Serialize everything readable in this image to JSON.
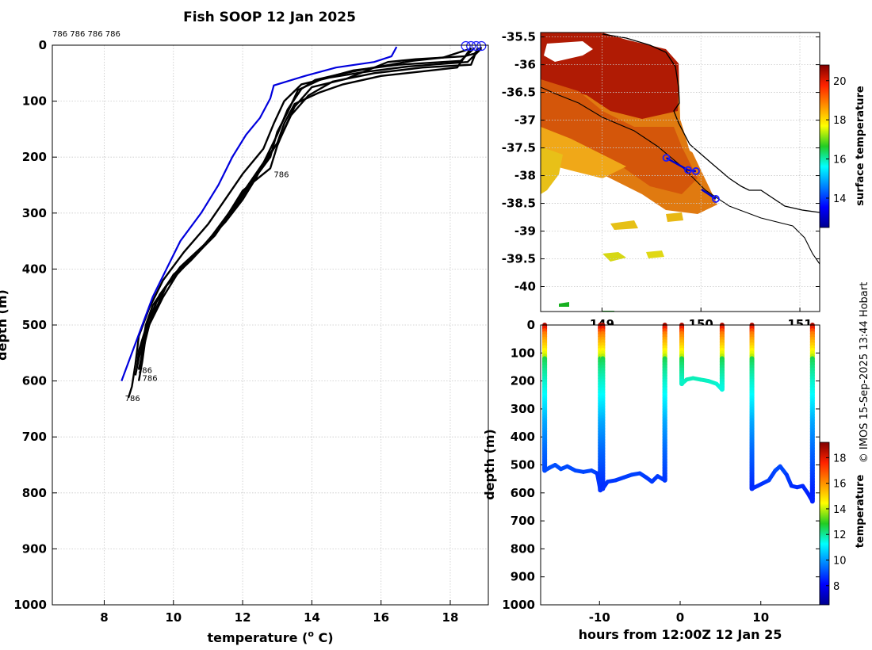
{
  "chart_data": [
    {
      "id": "profile",
      "type": "line",
      "title": "Fish SOOP 12 Jan 2025",
      "xlabel": "temperature (",
      "xlabel_degree": "o",
      "xlabel_unit": " C)",
      "ylabel": "depth (m)",
      "xlim": [
        6.5,
        19.1
      ],
      "ylim": [
        0,
        1000
      ],
      "y_reversed": true,
      "grid": true,
      "xticks": [
        8,
        10,
        12,
        14,
        16,
        18
      ],
      "yticks": [
        0,
        100,
        200,
        300,
        400,
        500,
        600,
        700,
        800,
        900,
        1000
      ],
      "top_label": "786 786 786 786",
      "climatology": {
        "name": "blue reference profile",
        "color": "#0000dd",
        "points": [
          [
            16.45,
            3
          ],
          [
            16.3,
            20
          ],
          [
            15.8,
            30
          ],
          [
            14.7,
            40
          ],
          [
            13.8,
            55
          ],
          [
            12.9,
            72
          ],
          [
            12.8,
            95
          ],
          [
            12.5,
            130
          ],
          [
            12.1,
            160
          ],
          [
            11.7,
            200
          ],
          [
            11.3,
            250
          ],
          [
            10.8,
            300
          ],
          [
            10.2,
            350
          ],
          [
            9.8,
            400
          ],
          [
            9.4,
            450
          ],
          [
            9.1,
            500
          ],
          [
            8.8,
            550
          ],
          [
            8.5,
            600
          ]
        ]
      },
      "profiles": [
        {
          "name": "drop 1",
          "points": [
            [
              18.9,
              3
            ],
            [
              18.7,
              15
            ],
            [
              18.4,
              20
            ],
            [
              17.0,
              25
            ],
            [
              16.2,
              30
            ],
            [
              15.0,
              60
            ],
            [
              14.0,
              75
            ],
            [
              13.5,
              110
            ],
            [
              13.2,
              150
            ],
            [
              13.0,
              180
            ],
            [
              12.8,
              220
            ],
            [
              12.0,
              260
            ],
            [
              11.6,
              300
            ],
            [
              11.0,
              350
            ],
            [
              10.2,
              400
            ],
            [
              9.7,
              450
            ],
            [
              9.3,
              500
            ],
            [
              9.1,
              550
            ],
            [
              9.0,
              580
            ]
          ]
        },
        {
          "name": "drop 2",
          "points": [
            [
              18.7,
              5
            ],
            [
              18.3,
              28
            ],
            [
              16.5,
              35
            ],
            [
              15.2,
              45
            ],
            [
              14.3,
              60
            ],
            [
              13.6,
              80
            ],
            [
              13.3,
              120
            ],
            [
              13.0,
              155
            ],
            [
              12.8,
              200
            ],
            [
              12.2,
              250
            ],
            [
              11.7,
              295
            ],
            [
              11.2,
              340
            ],
            [
              10.4,
              390
            ],
            [
              9.8,
              430
            ],
            [
              9.5,
              470
            ],
            [
              9.2,
              510
            ],
            [
              9.0,
              560
            ],
            [
              8.9,
              590
            ]
          ]
        },
        {
          "name": "drop 3",
          "points": [
            [
              18.8,
              4
            ],
            [
              18.6,
              35
            ],
            [
              17.2,
              40
            ],
            [
              15.8,
              50
            ],
            [
              14.6,
              65
            ],
            [
              13.9,
              90
            ],
            [
              13.4,
              125
            ],
            [
              13.1,
              165
            ],
            [
              12.7,
              205
            ],
            [
              12.3,
              240
            ],
            [
              11.9,
              280
            ],
            [
              11.4,
              320
            ],
            [
              10.7,
              370
            ],
            [
              10.0,
              410
            ],
            [
              9.5,
              460
            ],
            [
              9.2,
              520
            ],
            [
              9.1,
              565
            ],
            [
              9.0,
              600
            ]
          ]
        },
        {
          "name": "drop 4",
          "points": [
            [
              18.9,
              6
            ],
            [
              18.5,
              30
            ],
            [
              16.8,
              38
            ],
            [
              15.5,
              48
            ],
            [
              14.5,
              58
            ],
            [
              13.7,
              70
            ],
            [
              13.2,
              100
            ],
            [
              12.9,
              140
            ],
            [
              12.6,
              185
            ],
            [
              12.0,
              230
            ],
            [
              11.5,
              275
            ],
            [
              11.0,
              320
            ],
            [
              10.3,
              370
            ],
            [
              9.7,
              420
            ],
            [
              9.3,
              470
            ],
            [
              9.0,
              520
            ],
            [
              8.9,
              570
            ],
            [
              8.8,
              610
            ],
            [
              8.7,
              630
            ]
          ]
        },
        {
          "name": "drop 5",
          "points": [
            [
              18.6,
              5
            ],
            [
              18.2,
              40
            ],
            [
              16.0,
              55
            ],
            [
              14.9,
              70
            ],
            [
              14.2,
              85
            ],
            [
              13.5,
              105
            ],
            [
              13.2,
              140
            ],
            [
              13.0,
              175
            ],
            [
              12.6,
              210
            ],
            [
              12.1,
              255
            ],
            [
              11.6,
              300
            ],
            [
              11.1,
              345
            ],
            [
              10.5,
              385
            ],
            [
              9.9,
              420
            ],
            [
              9.4,
              465
            ],
            [
              9.2,
              500
            ],
            [
              9.1,
              540
            ],
            [
              9.05,
              580
            ]
          ]
        },
        {
          "name": "drop 6",
          "points": [
            [
              18.5,
              8
            ],
            [
              17.8,
              22
            ],
            [
              16.9,
              28
            ],
            [
              15.6,
              42
            ],
            [
              14.8,
              52
            ],
            [
              14.1,
              62
            ],
            [
              13.7,
              78
            ],
            [
              13.3,
              115
            ],
            [
              13.0,
              160
            ],
            [
              12.7,
              198
            ],
            [
              12.4,
              236
            ],
            [
              12.0,
              276
            ],
            [
              11.5,
              316
            ],
            [
              10.9,
              356
            ],
            [
              10.2,
              396
            ],
            [
              9.6,
              446
            ],
            [
              9.25,
              496
            ],
            [
              9.0,
              546
            ],
            [
              8.95,
              575
            ]
          ]
        }
      ],
      "drop_labels": [
        {
          "text": "786",
          "t": 12.9,
          "d": 230
        },
        {
          "text": "786",
          "t": 8.95,
          "d": 580
        },
        {
          "text": "786",
          "t": 9.1,
          "d": 594
        },
        {
          "text": "786",
          "t": 8.6,
          "d": 630
        }
      ],
      "surface_markers_t": [
        18.45,
        18.6,
        18.75,
        18.9
      ]
    },
    {
      "id": "map",
      "type": "heatmap",
      "colorbar_label": "surface temperature",
      "colorbar_ticks": [
        14,
        16,
        18,
        20
      ],
      "colorbar_range": [
        12.5,
        20.8
      ],
      "xlim": [
        148.38,
        151.2
      ],
      "ylim": [
        -40.45,
        -35.42
      ],
      "xticks": [
        149,
        150,
        151
      ],
      "xtick_labels": [
        "149",
        "150",
        "151"
      ],
      "yticks": [
        -35.5,
        -36,
        -36.5,
        -37,
        -37.5,
        -38,
        -38.5,
        -39,
        -39.5,
        -40
      ],
      "ytick_labels": [
        "-35.5",
        "-36",
        "-36.5",
        "-37",
        "-37.5",
        "-38",
        "-38.5",
        "-39",
        "-39.5",
        "-40"
      ],
      "stations": [
        [
          149.65,
          -37.68
        ],
        [
          149.87,
          -37.9
        ],
        [
          149.95,
          -37.92
        ],
        [
          150.15,
          -38.42
        ]
      ]
    },
    {
      "id": "section",
      "type": "scatter",
      "xlabel": "hours from 12:00Z 12 Jan 25",
      "ylabel": "depth (m)",
      "xlim": [
        -17.3,
        17.3
      ],
      "ylim": [
        0,
        1000
      ],
      "y_reversed": true,
      "xticks": [
        -10,
        0,
        10
      ],
      "yticks": [
        0,
        100,
        200,
        300,
        400,
        500,
        600,
        700,
        800,
        900,
        1000
      ],
      "colorbar_label": "temperature",
      "colorbar_ticks": [
        8,
        10,
        12,
        14,
        16,
        18
      ],
      "colorbar_range": [
        6.5,
        19.2
      ],
      "casts": [
        {
          "down_h": -16.8,
          "up_h": -9.9,
          "bottom": [
            [
              -16.8,
              520
            ],
            [
              -16.2,
              510
            ],
            [
              -15.5,
              500
            ],
            [
              -14.8,
              515
            ],
            [
              -14.0,
              505
            ],
            [
              -13.0,
              520
            ],
            [
              -12.0,
              525
            ],
            [
              -11.0,
              520
            ],
            [
              -10.3,
              530
            ],
            [
              -9.9,
              590
            ]
          ]
        },
        {
          "down_h": -9.6,
          "up_h": -1.9,
          "bottom": [
            [
              -9.6,
              585
            ],
            [
              -9.0,
              560
            ],
            [
              -8.0,
              555
            ],
            [
              -7.0,
              545
            ],
            [
              -6.0,
              535
            ],
            [
              -5.0,
              530
            ],
            [
              -4.2,
              545
            ],
            [
              -3.5,
              560
            ],
            [
              -2.8,
              540
            ],
            [
              -2.2,
              550
            ],
            [
              -1.9,
              555
            ]
          ]
        },
        {
          "down_h": 0.2,
          "up_h": 5.2,
          "bottom": [
            [
              0.2,
              210
            ],
            [
              0.8,
              195
            ],
            [
              1.6,
              190
            ],
            [
              2.5,
              195
            ],
            [
              3.5,
              200
            ],
            [
              4.5,
              210
            ],
            [
              5.0,
              225
            ],
            [
              5.2,
              230
            ]
          ]
        },
        {
          "down_h": 8.9,
          "up_h": 16.4,
          "bottom": [
            [
              8.9,
              585
            ],
            [
              9.6,
              575
            ],
            [
              10.3,
              565
            ],
            [
              11.0,
              555
            ],
            [
              11.8,
              520
            ],
            [
              12.4,
              505
            ],
            [
              13.2,
              535
            ],
            [
              13.8,
              575
            ],
            [
              14.5,
              580
            ],
            [
              15.2,
              575
            ],
            [
              15.8,
              600
            ],
            [
              16.4,
              630
            ]
          ]
        }
      ]
    }
  ],
  "credit": "© IMOS 15-Sep-2025 13:44 Hobart"
}
